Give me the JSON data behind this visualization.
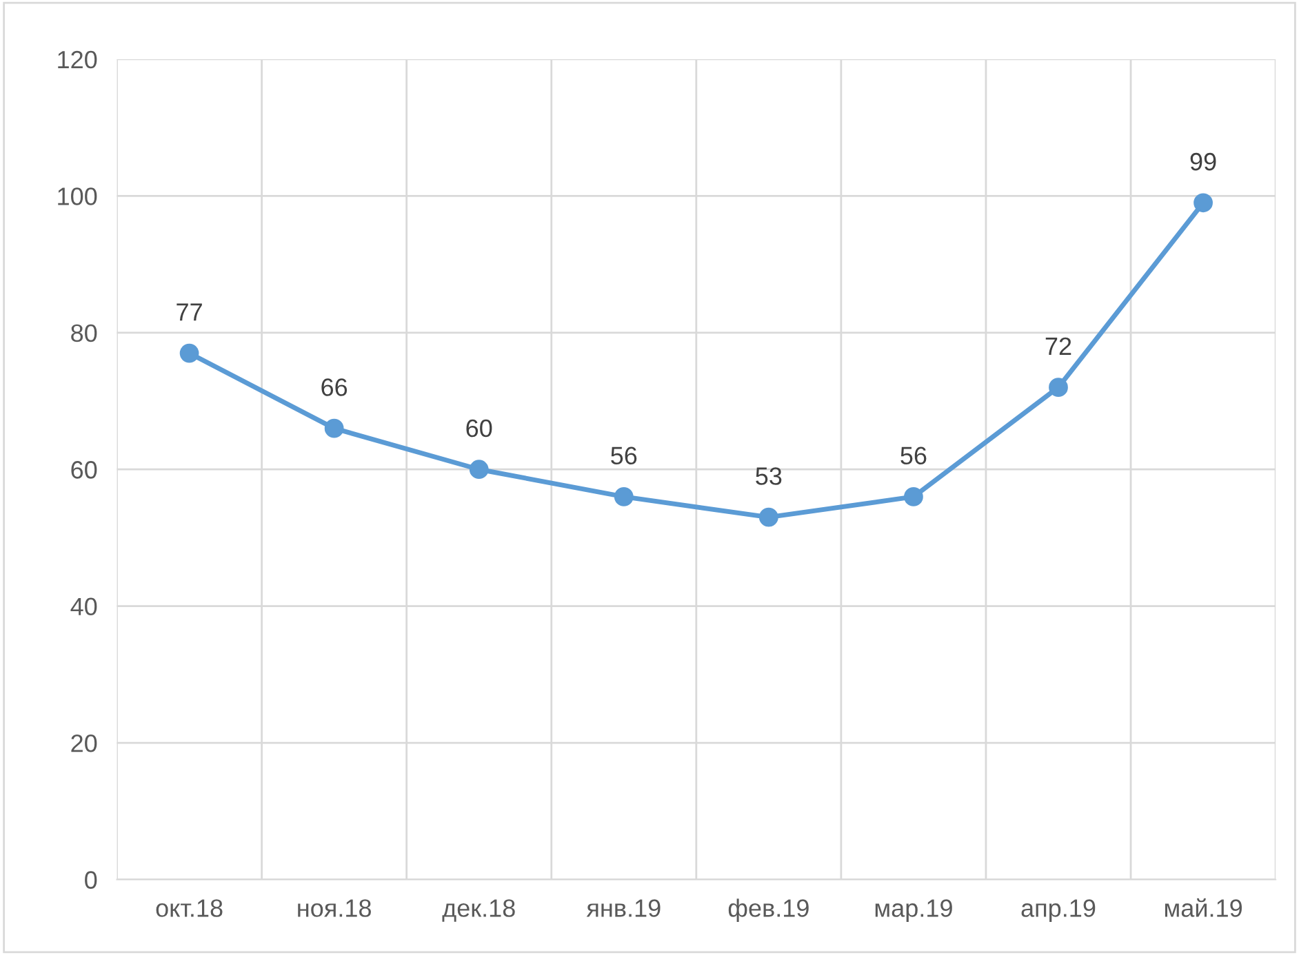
{
  "chart_data": {
    "type": "line",
    "categories": [
      "окт.18",
      "ноя.18",
      "дек.18",
      "янв.19",
      "фев.19",
      "мар.19",
      "апр.19",
      "май.19"
    ],
    "series": [
      {
        "color": "#5b9bd5",
        "values": [
          77,
          66,
          60,
          56,
          53,
          56,
          72,
          99
        ]
      }
    ],
    "ylim": [
      0,
      120
    ],
    "yticks": [
      0,
      20,
      40,
      60,
      80,
      100,
      120
    ],
    "grid": true,
    "marker": "circle",
    "line_style": "solid",
    "data_labels": true,
    "legend": false
  }
}
